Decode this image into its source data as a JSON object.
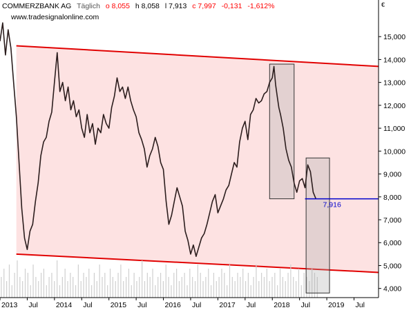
{
  "header": {
    "instrument": "COMMERZBANK AG",
    "interval": "Täglich",
    "open": "o 8,055",
    "high": "h 8,058",
    "low": "l 7,913",
    "close": "c 7,997",
    "change": "-0,131",
    "change_pct": "-1,612%",
    "url": "www.tradesignalonline.com",
    "currency": "€"
  },
  "colors": {
    "up": "#ff0000",
    "channel_fill": "#fde2e2",
    "channel_line": "#e10000",
    "price": "#2b1d1d",
    "marker_line": "#0000cc",
    "volume": "#cfcfcf",
    "box_fill": "#a8a8a8",
    "box_stroke": "#333333"
  },
  "chart_data": {
    "type": "line",
    "y_ticks": [
      "4,000",
      "5,000",
      "6,000",
      "7,000",
      "8,000",
      "9,000",
      "10,000",
      "11,000",
      "12,000",
      "13,000",
      "14,000",
      "15,000"
    ],
    "x_ticks": [
      "2013",
      "Jul",
      "2014",
      "Jul",
      "2015",
      "Jul",
      "2016",
      "Jul",
      "2017",
      "Jul",
      "2018",
      "Jul",
      "2019",
      "Jul"
    ],
    "ylim": [
      3.6,
      16.6
    ],
    "xlim": [
      2013.0,
      2019.95
    ],
    "series": [
      {
        "values": [
          [
            2013.0,
            14.8
          ],
          [
            2013.05,
            15.6
          ],
          [
            2013.1,
            14.2
          ],
          [
            2013.15,
            15.3
          ],
          [
            2013.2,
            14.5
          ],
          [
            2013.25,
            13.0
          ],
          [
            2013.3,
            11.5
          ],
          [
            2013.35,
            9.5
          ],
          [
            2013.4,
            7.5
          ],
          [
            2013.45,
            6.2
          ],
          [
            2013.5,
            5.7
          ],
          [
            2013.55,
            6.5
          ],
          [
            2013.6,
            6.8
          ],
          [
            2013.65,
            7.8
          ],
          [
            2013.7,
            8.6
          ],
          [
            2013.75,
            9.8
          ],
          [
            2013.8,
            10.4
          ],
          [
            2013.85,
            10.6
          ],
          [
            2013.9,
            11.3
          ],
          [
            2013.95,
            11.7
          ],
          [
            2014.0,
            13.0
          ],
          [
            2014.05,
            14.3
          ],
          [
            2014.1,
            12.6
          ],
          [
            2014.15,
            13.0
          ],
          [
            2014.2,
            12.2
          ],
          [
            2014.25,
            12.8
          ],
          [
            2014.3,
            11.8
          ],
          [
            2014.35,
            12.2
          ],
          [
            2014.4,
            11.5
          ],
          [
            2014.45,
            11.8
          ],
          [
            2014.5,
            11.0
          ],
          [
            2014.55,
            10.6
          ],
          [
            2014.6,
            11.6
          ],
          [
            2014.65,
            10.8
          ],
          [
            2014.7,
            11.2
          ],
          [
            2014.75,
            10.3
          ],
          [
            2014.8,
            11.0
          ],
          [
            2014.85,
            10.8
          ],
          [
            2014.9,
            11.6
          ],
          [
            2014.95,
            11.2
          ],
          [
            2015.0,
            11.0
          ],
          [
            2015.05,
            11.9
          ],
          [
            2015.1,
            12.4
          ],
          [
            2015.15,
            13.2
          ],
          [
            2015.2,
            12.6
          ],
          [
            2015.25,
            12.8
          ],
          [
            2015.3,
            12.3
          ],
          [
            2015.35,
            12.8
          ],
          [
            2015.4,
            12.2
          ],
          [
            2015.45,
            11.8
          ],
          [
            2015.5,
            11.5
          ],
          [
            2015.55,
            10.8
          ],
          [
            2015.6,
            10.5
          ],
          [
            2015.65,
            10.1
          ],
          [
            2015.7,
            9.3
          ],
          [
            2015.75,
            9.8
          ],
          [
            2015.8,
            10.1
          ],
          [
            2015.85,
            10.6
          ],
          [
            2015.9,
            10.2
          ],
          [
            2015.95,
            9.5
          ],
          [
            2016.0,
            9.2
          ],
          [
            2016.05,
            7.8
          ],
          [
            2016.1,
            6.8
          ],
          [
            2016.15,
            7.2
          ],
          [
            2016.2,
            7.8
          ],
          [
            2016.25,
            8.4
          ],
          [
            2016.3,
            8.0
          ],
          [
            2016.35,
            7.6
          ],
          [
            2016.4,
            6.5
          ],
          [
            2016.45,
            6.1
          ],
          [
            2016.5,
            5.5
          ],
          [
            2016.55,
            5.9
          ],
          [
            2016.6,
            5.4
          ],
          [
            2016.65,
            5.8
          ],
          [
            2016.7,
            6.2
          ],
          [
            2016.75,
            6.4
          ],
          [
            2016.8,
            6.8
          ],
          [
            2016.85,
            7.3
          ],
          [
            2016.9,
            7.8
          ],
          [
            2016.95,
            8.1
          ],
          [
            2017.0,
            7.3
          ],
          [
            2017.05,
            7.6
          ],
          [
            2017.1,
            7.9
          ],
          [
            2017.15,
            8.3
          ],
          [
            2017.2,
            8.5
          ],
          [
            2017.25,
            9.0
          ],
          [
            2017.3,
            9.5
          ],
          [
            2017.35,
            9.3
          ],
          [
            2017.4,
            10.4
          ],
          [
            2017.45,
            11.0
          ],
          [
            2017.5,
            11.3
          ],
          [
            2017.55,
            10.5
          ],
          [
            2017.6,
            11.6
          ],
          [
            2017.65,
            11.8
          ],
          [
            2017.7,
            12.3
          ],
          [
            2017.75,
            12.1
          ],
          [
            2017.8,
            12.2
          ],
          [
            2017.85,
            12.5
          ],
          [
            2017.9,
            12.6
          ],
          [
            2017.95,
            13.0
          ],
          [
            2018.0,
            13.2
          ],
          [
            2018.03,
            13.7
          ],
          [
            2018.06,
            12.9
          ],
          [
            2018.09,
            12.4
          ],
          [
            2018.12,
            11.9
          ],
          [
            2018.15,
            11.6
          ],
          [
            2018.2,
            11.0
          ],
          [
            2018.25,
            10.1
          ],
          [
            2018.3,
            9.6
          ],
          [
            2018.35,
            9.3
          ],
          [
            2018.4,
            8.6
          ],
          [
            2018.45,
            8.2
          ],
          [
            2018.5,
            8.7
          ],
          [
            2018.55,
            8.8
          ],
          [
            2018.6,
            8.4
          ],
          [
            2018.65,
            9.4
          ],
          [
            2018.7,
            9.1
          ],
          [
            2018.75,
            8.2
          ],
          [
            2018.8,
            7.916
          ]
        ]
      }
    ],
    "annotations": [
      {
        "type": "hline",
        "y": 7.916,
        "label": "7,916",
        "x_start": 2018.6
      },
      {
        "type": "channel_upper",
        "x1": 2013.3,
        "y1": 14.6,
        "x2": 2019.95,
        "y2": 13.7
      },
      {
        "type": "channel_lower",
        "x1": 2013.3,
        "y1": 5.5,
        "x2": 2019.95,
        "y2": 4.7
      },
      {
        "type": "box",
        "x1": 2017.95,
        "x2": 2018.4,
        "y1": 7.916,
        "y2": 13.8
      },
      {
        "type": "box",
        "x1": 2018.62,
        "x2": 2019.05,
        "y1": 3.8,
        "y2": 9.7
      }
    ],
    "volume": [
      0.5,
      0.7,
      0.4,
      0.8,
      0.3,
      0.6,
      0.9,
      0.5,
      0.4,
      0.7,
      0.6,
      0.3,
      0.8,
      0.5,
      0.4,
      0.6,
      0.7,
      0.3,
      0.5,
      0.6,
      0.4,
      0.9,
      0.3,
      0.5,
      0.7,
      0.4,
      0.6,
      0.5,
      0.3,
      0.8,
      0.4,
      0.6,
      0.5,
      0.7,
      0.3,
      0.6,
      0.4,
      0.8,
      0.5,
      0.6,
      0.3,
      0.7,
      0.5,
      0.4,
      0.6,
      0.8,
      0.4,
      0.5,
      0.7,
      0.3,
      0.6,
      0.4,
      0.5,
      0.9,
      0.4,
      0.6,
      0.5,
      0.7,
      0.3,
      0.5,
      0.6,
      0.4,
      0.8,
      0.5,
      0.3,
      0.6,
      0.7,
      0.4,
      0.5,
      0.6,
      0.3,
      0.7,
      0.5,
      0.4,
      0.8,
      0.6,
      0.4,
      0.5,
      0.7,
      0.3,
      0.6,
      0.4,
      0.5,
      0.7,
      0.6,
      0.3,
      0.8,
      0.5,
      0.4,
      0.6,
      0.5,
      0.7,
      0.4,
      0.6,
      0.3,
      0.5,
      0.8,
      0.4,
      0.6,
      0.5,
      0.7,
      0.4,
      0.5,
      0.6,
      0.3,
      0.7,
      0.5,
      0.4,
      0.6,
      0.8,
      0.5,
      0.4,
      0.7,
      0.3,
      0.6,
      0.5,
      0.4,
      0.7,
      0.6,
      0.5
    ]
  }
}
